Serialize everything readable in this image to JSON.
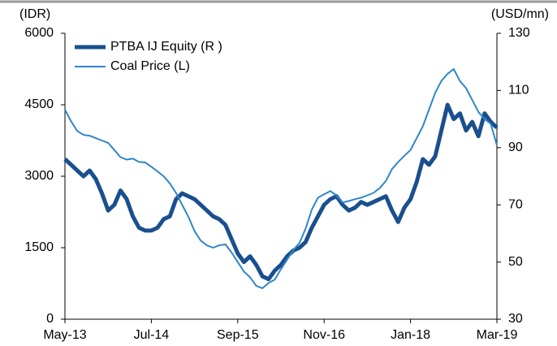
{
  "chart_data": {
    "type": "line",
    "y_axis_label": "(IDR)",
    "y2_axis_label": "(USD/mn)",
    "categories": [
      "May-13",
      null,
      null,
      null,
      null,
      null,
      null,
      null,
      null,
      null,
      null,
      null,
      null,
      null,
      "Jul-14",
      null,
      null,
      null,
      null,
      null,
      null,
      null,
      null,
      null,
      null,
      null,
      null,
      null,
      "Sep-15",
      null,
      null,
      null,
      null,
      null,
      null,
      null,
      null,
      null,
      null,
      null,
      null,
      null,
      "Nov-16",
      null,
      null,
      null,
      null,
      null,
      null,
      null,
      null,
      null,
      null,
      null,
      null,
      null,
      "Jan-18",
      null,
      null,
      null,
      null,
      null,
      null,
      null,
      null,
      null,
      null,
      null,
      null,
      null,
      "Mar-19"
    ],
    "series": [
      {
        "name": "PTBA IJ Equity (R )",
        "color": "#1a4f8f",
        "axis": "y2",
        "values": [
          86,
          84,
          82,
          80,
          82,
          79,
          74,
          68,
          70,
          75,
          72,
          66,
          62,
          61,
          61,
          62,
          65,
          66,
          72,
          74,
          73,
          72,
          70,
          68,
          66,
          65,
          63,
          58,
          53,
          50,
          52,
          49,
          45,
          44,
          47,
          49,
          52,
          54,
          55,
          57,
          62,
          66,
          70,
          72,
          73,
          70,
          68,
          69,
          71,
          70,
          71,
          72,
          73,
          68,
          64,
          69,
          72,
          78,
          86,
          84,
          87,
          96,
          105,
          100,
          102,
          96,
          99,
          94,
          102,
          99,
          97
        ]
      },
      {
        "name": "Coal Price (L)",
        "color": "#2e86c8",
        "values": [
          4400,
          4150,
          3950,
          3870,
          3850,
          3800,
          3750,
          3700,
          3550,
          3400,
          3350,
          3370,
          3300,
          3290,
          3200,
          3100,
          3000,
          2850,
          2650,
          2400,
          2150,
          1850,
          1650,
          1550,
          1500,
          1550,
          1570,
          1400,
          1200,
          1000,
          880,
          700,
          650,
          760,
          830,
          1050,
          1250,
          1450,
          1600,
          1900,
          2300,
          2550,
          2620,
          2690,
          2600,
          2450,
          2480,
          2520,
          2550,
          2600,
          2650,
          2750,
          2900,
          3150,
          3300,
          3430,
          3550,
          3800,
          4050,
          4400,
          4750,
          5000,
          5150,
          5250,
          5000,
          4850,
          4600,
          4350,
          4200,
          4100,
          3650
        ]
      }
    ],
    "ylim": [
      0,
      6000
    ],
    "yticks": [
      0,
      1500,
      3000,
      4500,
      6000
    ],
    "y2lim": [
      30,
      130
    ],
    "y2ticks": [
      30,
      50,
      70,
      90,
      110,
      130
    ],
    "legend": "upper left",
    "grid": false
  }
}
